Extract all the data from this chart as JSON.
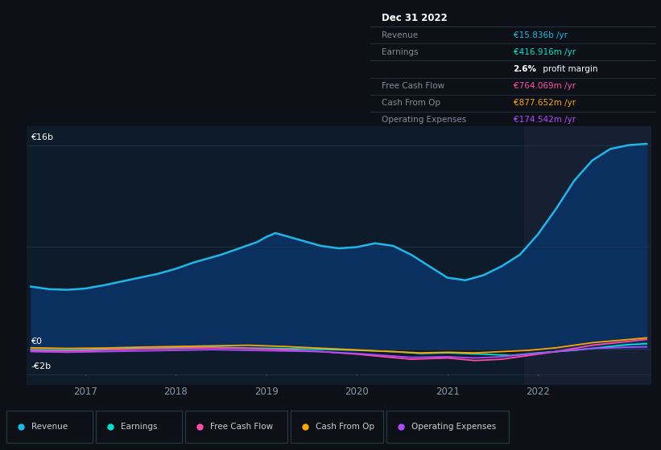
{
  "bg_color": "#0d1117",
  "plot_bg_color": "#0d1b2a",
  "grid_color": "#253545",
  "highlight_bg": "#162032",
  "y_labels": [
    "€16b",
    "€0",
    "-€2b"
  ],
  "y_values": [
    16000000000,
    0,
    -2000000000
  ],
  "x_ticks": [
    2017,
    2018,
    2019,
    2020,
    2021,
    2022
  ],
  "ylim_min": -2800000000,
  "ylim_max": 17500000000,
  "xlim_start": 2016.35,
  "xlim_end": 2023.25,
  "highlight_x_start": 2021.85,
  "revenue_color": "#1eb8e8",
  "earnings_color": "#00e5cc",
  "fcf_color": "#ff4da6",
  "cashfromop_color": "#ffa500",
  "opex_color": "#b04aff",
  "revenue_fill_color": "#0a3060",
  "legend_items": [
    "Revenue",
    "Earnings",
    "Free Cash Flow",
    "Cash From Op",
    "Operating Expenses"
  ],
  "legend_colors": [
    "#1eb8e8",
    "#00e5cc",
    "#ff4da6",
    "#ffa500",
    "#b04aff"
  ],
  "info_title": "Dec 31 2022",
  "info_rows": [
    {
      "label": "Revenue",
      "value": "€15.836b /yr",
      "value_color": "#1eb8e8"
    },
    {
      "label": "Earnings",
      "value": "€416.916m /yr",
      "value_color": "#00e5cc"
    },
    {
      "label": "",
      "value": "2.6% profit margin",
      "value_color": "#ffffff"
    },
    {
      "label": "Free Cash Flow",
      "value": "€764.069m /yr",
      "value_color": "#ff4da6"
    },
    {
      "label": "Cash From Op",
      "value": "€877.652m /yr",
      "value_color": "#ffa500"
    },
    {
      "label": "Operating Expenses",
      "value": "€174.542m /yr",
      "value_color": "#b04aff"
    }
  ],
  "rev_x": [
    2016.4,
    2016.6,
    2016.8,
    2017.0,
    2017.2,
    2017.4,
    2017.6,
    2017.8,
    2018.0,
    2018.2,
    2018.5,
    2018.7,
    2018.9,
    2019.0,
    2019.1,
    2019.2,
    2019.4,
    2019.6,
    2019.8,
    2020.0,
    2020.2,
    2020.4,
    2020.6,
    2020.8,
    2021.0,
    2021.2,
    2021.4,
    2021.6,
    2021.8,
    2022.0,
    2022.2,
    2022.4,
    2022.6,
    2022.8,
    2023.0,
    2023.2
  ],
  "rev_y": [
    4900000000,
    4700000000,
    4650000000,
    4750000000,
    5000000000,
    5300000000,
    5600000000,
    5900000000,
    6300000000,
    6800000000,
    7400000000,
    7900000000,
    8400000000,
    8800000000,
    9100000000,
    8900000000,
    8500000000,
    8100000000,
    7900000000,
    8000000000,
    8300000000,
    8100000000,
    7400000000,
    6500000000,
    5600000000,
    5400000000,
    5800000000,
    6500000000,
    7400000000,
    9000000000,
    11000000000,
    13200000000,
    14800000000,
    15700000000,
    16000000000,
    16100000000
  ],
  "earn_x": [
    2016.4,
    2016.8,
    2017.2,
    2017.6,
    2018.0,
    2018.4,
    2018.8,
    2019.2,
    2019.6,
    2020.0,
    2020.4,
    2020.7,
    2021.0,
    2021.4,
    2021.7,
    2022.0,
    2022.4,
    2022.8,
    2023.0,
    2023.2
  ],
  "earn_y": [
    -50000000,
    -80000000,
    -20000000,
    50000000,
    100000000,
    150000000,
    80000000,
    30000000,
    -20000000,
    -100000000,
    -200000000,
    -350000000,
    -300000000,
    -400000000,
    -500000000,
    -300000000,
    -100000000,
    200000000,
    350000000,
    420000000
  ],
  "fcf_x": [
    2016.4,
    2016.8,
    2017.2,
    2017.6,
    2018.0,
    2018.4,
    2018.8,
    2019.2,
    2019.6,
    2020.0,
    2020.3,
    2020.6,
    2021.0,
    2021.3,
    2021.6,
    2021.9,
    2022.2,
    2022.6,
    2023.0,
    2023.2
  ],
  "fcf_y": [
    -100000000,
    -150000000,
    -80000000,
    0,
    50000000,
    100000000,
    50000000,
    -50000000,
    -200000000,
    -400000000,
    -600000000,
    -800000000,
    -700000000,
    -900000000,
    -800000000,
    -500000000,
    -200000000,
    300000000,
    600000000,
    760000000
  ],
  "cop_x": [
    2016.4,
    2016.8,
    2017.2,
    2017.6,
    2018.0,
    2018.4,
    2018.8,
    2019.2,
    2019.5,
    2019.8,
    2020.1,
    2020.4,
    2020.7,
    2021.0,
    2021.3,
    2021.6,
    2021.9,
    2022.2,
    2022.6,
    2023.0,
    2023.2
  ],
  "cop_y": [
    100000000,
    50000000,
    80000000,
    150000000,
    200000000,
    250000000,
    300000000,
    200000000,
    100000000,
    0,
    -100000000,
    -200000000,
    -300000000,
    -250000000,
    -300000000,
    -200000000,
    -100000000,
    100000000,
    500000000,
    750000000,
    878000000
  ],
  "opex_x": [
    2016.4,
    2016.8,
    2017.2,
    2017.6,
    2018.0,
    2018.4,
    2018.8,
    2019.2,
    2019.6,
    2020.0,
    2020.3,
    2020.6,
    2021.0,
    2021.3,
    2021.6,
    2021.9,
    2022.2,
    2022.6,
    2023.0,
    2023.2
  ],
  "opex_y": [
    -200000000,
    -250000000,
    -200000000,
    -150000000,
    -100000000,
    -50000000,
    -100000000,
    -150000000,
    -200000000,
    -350000000,
    -500000000,
    -650000000,
    -600000000,
    -700000000,
    -600000000,
    -400000000,
    -200000000,
    50000000,
    150000000,
    175000000
  ]
}
